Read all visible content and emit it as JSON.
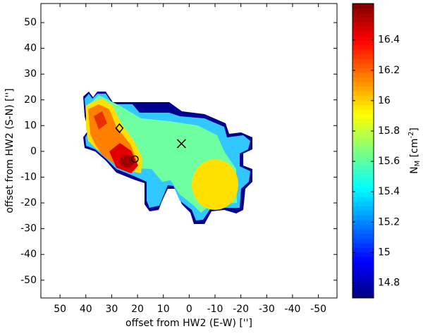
{
  "chart_data": {
    "type": "contourf",
    "xlabel": "offset from HW2 (E-W) ['']",
    "ylabel": "offset from HW2 (S-N) ['']",
    "xlim": [
      57.4,
      -57.2
    ],
    "ylim": [
      -56.9,
      57.4
    ],
    "xticks": [
      50,
      40,
      30,
      20,
      10,
      0,
      -10,
      -20,
      -30,
      -40,
      -50
    ],
    "yticks": [
      -50,
      -40,
      -30,
      -20,
      -10,
      0,
      10,
      20,
      30,
      40,
      50
    ],
    "markers": [
      {
        "shape": "diamond",
        "x": 27,
        "y": 9
      },
      {
        "shape": "circle",
        "x": 21,
        "y": -3
      },
      {
        "shape": "cross",
        "x": 3,
        "y": 3
      }
    ],
    "colorbar": {
      "colormap": "jet",
      "clim": [
        14.7,
        16.64
      ],
      "ticks": [
        14.8,
        15,
        15.2,
        15.4,
        15.6,
        15.8,
        16,
        16.2,
        16.4
      ],
      "label": {
        "base": "N",
        "sub": "M",
        "unit": " [cm",
        "sup": "-2",
        "end": "]"
      }
    }
  }
}
